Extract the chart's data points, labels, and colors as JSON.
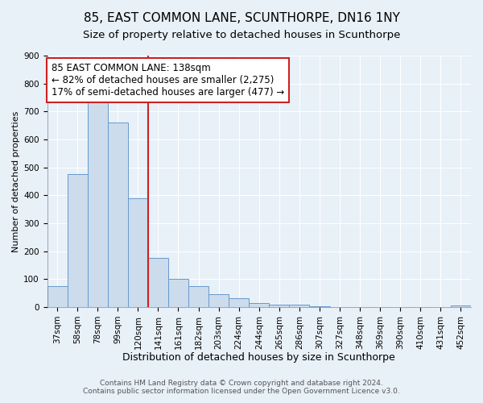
{
  "title": "85, EAST COMMON LANE, SCUNTHORPE, DN16 1NY",
  "subtitle": "Size of property relative to detached houses in Scunthorpe",
  "xlabel": "Distribution of detached houses by size in Scunthorpe",
  "ylabel": "Number of detached properties",
  "bin_labels": [
    "37sqm",
    "58sqm",
    "78sqm",
    "99sqm",
    "120sqm",
    "141sqm",
    "161sqm",
    "182sqm",
    "203sqm",
    "224sqm",
    "244sqm",
    "265sqm",
    "286sqm",
    "307sqm",
    "327sqm",
    "348sqm",
    "369sqm",
    "390sqm",
    "410sqm",
    "431sqm",
    "452sqm"
  ],
  "bar_values": [
    75,
    475,
    740,
    660,
    390,
    175,
    100,
    75,
    47,
    33,
    15,
    10,
    9,
    4,
    0,
    0,
    0,
    0,
    0,
    0,
    5
  ],
  "bar_color": "#ccdcec",
  "bar_edge_color": "#6699cc",
  "vline_color": "#cc2222",
  "annotation_text": "85 EAST COMMON LANE: 138sqm\n← 82% of detached houses are smaller (2,275)\n17% of semi-detached houses are larger (477) →",
  "annotation_box_color": "#ffffff",
  "annotation_box_edge": "#cc2222",
  "ylim": [
    0,
    900
  ],
  "yticks": [
    0,
    100,
    200,
    300,
    400,
    500,
    600,
    700,
    800,
    900
  ],
  "footer_text": "Contains HM Land Registry data © Crown copyright and database right 2024.\nContains public sector information licensed under the Open Government Licence v3.0.",
  "bg_color": "#e8f0f8",
  "plot_bg_color": "#e8f0f8",
  "grid_color": "#ffffff",
  "title_fontsize": 11,
  "subtitle_fontsize": 9.5,
  "xlabel_fontsize": 9,
  "ylabel_fontsize": 8,
  "tick_fontsize": 7.5,
  "annotation_fontsize": 8.5,
  "footer_fontsize": 6.5
}
